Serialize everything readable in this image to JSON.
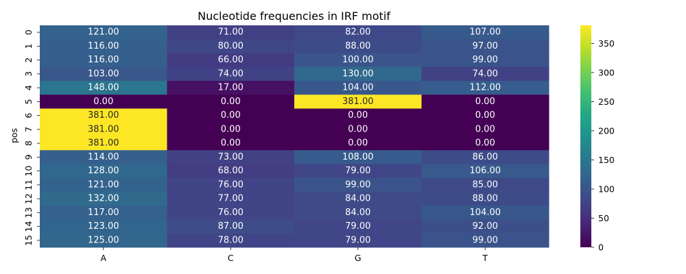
{
  "chart_data": {
    "type": "heatmap",
    "title": "Nucleotide frequencies in IRF motif",
    "xlabel": "",
    "ylabel": "pos",
    "x_categories": [
      "A",
      "C",
      "G",
      "T"
    ],
    "y_categories": [
      "0",
      "1",
      "2",
      "3",
      "4",
      "5",
      "6",
      "7",
      "8",
      "9",
      "10",
      "11",
      "12",
      "13",
      "14",
      "15"
    ],
    "values": [
      [
        121,
        71,
        82,
        107
      ],
      [
        116,
        80,
        88,
        97
      ],
      [
        116,
        66,
        100,
        99
      ],
      [
        103,
        74,
        130,
        74
      ],
      [
        148,
        17,
        104,
        112
      ],
      [
        0,
        0,
        381,
        0
      ],
      [
        381,
        0,
        0,
        0
      ],
      [
        381,
        0,
        0,
        0
      ],
      [
        381,
        0,
        0,
        0
      ],
      [
        114,
        73,
        108,
        86
      ],
      [
        128,
        68,
        79,
        106
      ],
      [
        121,
        76,
        99,
        85
      ],
      [
        132,
        77,
        84,
        88
      ],
      [
        117,
        76,
        84,
        104
      ],
      [
        123,
        87,
        79,
        92
      ],
      [
        125,
        78,
        79,
        99
      ]
    ],
    "value_format_decimals": 2,
    "colormap": "viridis",
    "vmin": 0,
    "vmax": 381,
    "colorbar_ticks": [
      0,
      50,
      100,
      150,
      200,
      250,
      300,
      350
    ],
    "annotation_colors": {
      "on_dark": "#ffffff",
      "on_light": "#262626"
    }
  }
}
